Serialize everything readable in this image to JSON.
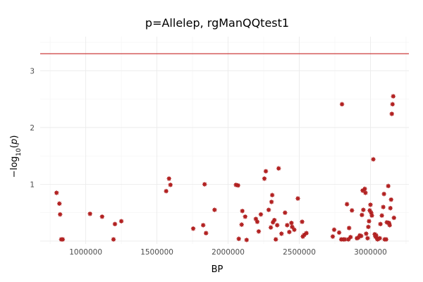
{
  "chart_data": {
    "type": "scatter",
    "title": "p=Allelep, rgManQQtest1",
    "xlabel": "BP",
    "ylabel_prefix": "−log",
    "ylabel_sub": "10",
    "ylabel_arg": "p",
    "xlim": [
      680000,
      3270000
    ],
    "ylim": [
      -0.05,
      3.6
    ],
    "x_ticks": [
      1000000,
      1500000,
      2000000,
      2500000,
      3000000
    ],
    "x_tick_labels": [
      "1000000",
      "1500000",
      "2000000",
      "2500000",
      "3000000"
    ],
    "y_ticks": [
      1,
      2,
      3
    ],
    "y_tick_labels": [
      "1",
      "2",
      "3"
    ],
    "threshold_y": 3.3,
    "grid": true,
    "legend": "none",
    "colors": {
      "points": "#b22222",
      "threshold": "#c62828"
    },
    "points": [
      [
        795000,
        0.85
      ],
      [
        815000,
        0.66
      ],
      [
        820000,
        0.47
      ],
      [
        828000,
        0.03
      ],
      [
        838000,
        0.03
      ],
      [
        1030000,
        0.48
      ],
      [
        1115000,
        0.43
      ],
      [
        1195000,
        0.03
      ],
      [
        1205000,
        0.3
      ],
      [
        1250000,
        0.35
      ],
      [
        1565000,
        0.88
      ],
      [
        1585000,
        1.1
      ],
      [
        1595000,
        0.99
      ],
      [
        1755000,
        0.22
      ],
      [
        1825000,
        0.28
      ],
      [
        1835000,
        1.0
      ],
      [
        1845000,
        0.14
      ],
      [
        1905000,
        0.55
      ],
      [
        2055000,
        0.99
      ],
      [
        2070000,
        0.98
      ],
      [
        2075000,
        0.04
      ],
      [
        2095000,
        0.29
      ],
      [
        2100000,
        0.53
      ],
      [
        2120000,
        0.43
      ],
      [
        2130000,
        0.02
      ],
      [
        2195000,
        0.39
      ],
      [
        2205000,
        0.34
      ],
      [
        2215000,
        0.17
      ],
      [
        2230000,
        0.47
      ],
      [
        2255000,
        1.1
      ],
      [
        2265000,
        1.23
      ],
      [
        2285000,
        0.55
      ],
      [
        2300000,
        0.24
      ],
      [
        2305000,
        0.69
      ],
      [
        2310000,
        0.81
      ],
      [
        2315000,
        0.33
      ],
      [
        2325000,
        0.37
      ],
      [
        2335000,
        0.03
      ],
      [
        2345000,
        0.28
      ],
      [
        2355000,
        1.28
      ],
      [
        2375000,
        0.13
      ],
      [
        2400000,
        0.5
      ],
      [
        2415000,
        0.28
      ],
      [
        2430000,
        0.16
      ],
      [
        2445000,
        0.32
      ],
      [
        2450000,
        0.25
      ],
      [
        2465000,
        0.2
      ],
      [
        2490000,
        0.75
      ],
      [
        2520000,
        0.34
      ],
      [
        2525000,
        0.08
      ],
      [
        2535000,
        0.11
      ],
      [
        2550000,
        0.14
      ],
      [
        2735000,
        0.08
      ],
      [
        2745000,
        0.2
      ],
      [
        2780000,
        0.15
      ],
      [
        2795000,
        0.03
      ],
      [
        2800000,
        2.41
      ],
      [
        2810000,
        0.03
      ],
      [
        2820000,
        0.03
      ],
      [
        2835000,
        0.65
      ],
      [
        2845000,
        0.03
      ],
      [
        2850000,
        0.23
      ],
      [
        2860000,
        0.07
      ],
      [
        2870000,
        0.54
      ],
      [
        2905000,
        0.05
      ],
      [
        2915000,
        0.06
      ],
      [
        2925000,
        0.1
      ],
      [
        2935000,
        0.09
      ],
      [
        2940000,
        0.46
      ],
      [
        2945000,
        0.89
      ],
      [
        2950000,
        0.55
      ],
      [
        2960000,
        0.92
      ],
      [
        2965000,
        0.85
      ],
      [
        2970000,
        0.13
      ],
      [
        2980000,
        0.05
      ],
      [
        2985000,
        0.25
      ],
      [
        2990000,
        0.35
      ],
      [
        2995000,
        0.54
      ],
      [
        3000000,
        0.64
      ],
      [
        3005000,
        0.5
      ],
      [
        3010000,
        0.45
      ],
      [
        3020000,
        1.44
      ],
      [
        3030000,
        0.12
      ],
      [
        3035000,
        0.08
      ],
      [
        3040000,
        0.1
      ],
      [
        3045000,
        0.05
      ],
      [
        3050000,
        0.03
      ],
      [
        3065000,
        0.05
      ],
      [
        3070000,
        0.3
      ],
      [
        3080000,
        0.45
      ],
      [
        3090000,
        0.6
      ],
      [
        3095000,
        0.83
      ],
      [
        3100000,
        0.03
      ],
      [
        3110000,
        0.03
      ],
      [
        3115000,
        0.33
      ],
      [
        3125000,
        0.97
      ],
      [
        3130000,
        0.32
      ],
      [
        3135000,
        0.28
      ],
      [
        3140000,
        0.58
      ],
      [
        3145000,
        0.73
      ],
      [
        3150000,
        2.24
      ],
      [
        3155000,
        2.41
      ],
      [
        3160000,
        2.55
      ],
      [
        3165000,
        0.41
      ]
    ]
  }
}
